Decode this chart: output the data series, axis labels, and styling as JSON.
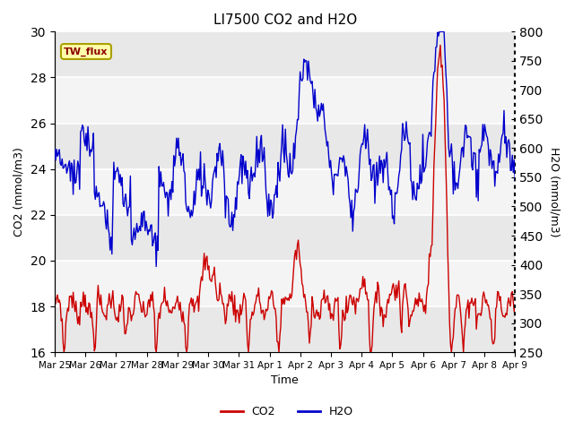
{
  "title": "LI7500 CO2 and H2O",
  "xlabel": "Time",
  "ylabel_left": "CO2 (mmol/m3)",
  "ylabel_right": "H2O (mmol/m3)",
  "ylim_left": [
    16,
    30
  ],
  "ylim_right": [
    250,
    800
  ],
  "yticks_left": [
    16,
    18,
    20,
    22,
    24,
    26,
    28,
    30
  ],
  "yticks_right": [
    250,
    300,
    350,
    400,
    450,
    500,
    550,
    600,
    650,
    700,
    750,
    800
  ],
  "xtick_labels": [
    "Mar 25",
    "Mar 26",
    "Mar 27",
    "Mar 28",
    "Mar 29",
    "Mar 30",
    "Mar 31",
    "Apr 1",
    "Apr 2",
    "Apr 3",
    "Apr 4",
    "Apr 5",
    "Apr 6",
    "Apr 7",
    "Apr 8",
    "Apr 9"
  ],
  "annotation_text": "TW_flux",
  "plot_bg_color": "#e8e8e8",
  "band_color": "#d0d0d0",
  "co2_color": "#cc0000",
  "h2o_color": "#0000cc",
  "legend_co2": "CO2",
  "legend_h2o": "H2O"
}
